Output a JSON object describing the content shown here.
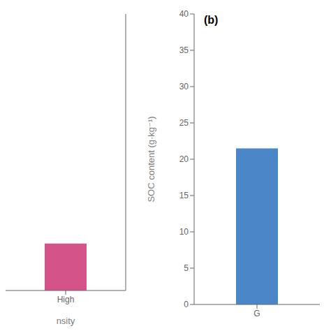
{
  "chart_data": [
    {
      "type": "bar",
      "categories": [
        "High"
      ],
      "values": [
        6.8
      ],
      "color": "#d4548a",
      "ylim": [
        0,
        40
      ],
      "xlabel": "nsity",
      "tick_labels": "x"
    },
    {
      "type": "bar",
      "categories": [
        "G"
      ],
      "values": [
        21.5
      ],
      "color": "#4a86c8",
      "ylim": [
        0,
        40
      ],
      "yticks": [
        0,
        5,
        10,
        15,
        20,
        25,
        30,
        35,
        40
      ],
      "ylabel": "SOC content (g·kg⁻¹)",
      "annotations": [
        "(b)"
      ]
    }
  ]
}
